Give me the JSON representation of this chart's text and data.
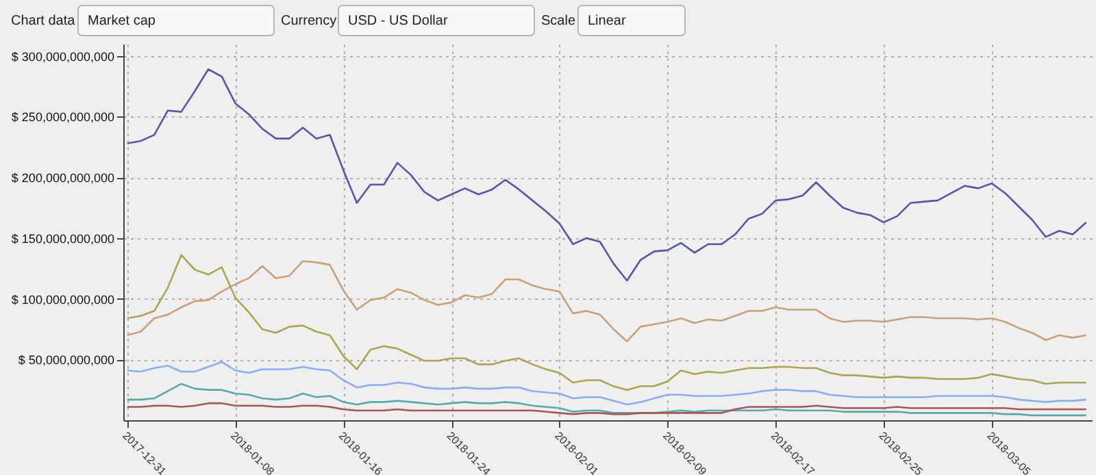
{
  "chart_data": {
    "type": "line",
    "annotations": [
      "Chart data",
      "Market cap",
      "Currency",
      "USD - US Dollar",
      "Scale",
      "Linear"
    ],
    "x": [
      "2017-12-31",
      "2018-01-01",
      "2018-01-02",
      "2018-01-03",
      "2018-01-04",
      "2018-01-05",
      "2018-01-06",
      "2018-01-07",
      "2018-01-08",
      "2018-01-09",
      "2018-01-10",
      "2018-01-11",
      "2018-01-12",
      "2018-01-13",
      "2018-01-14",
      "2018-01-15",
      "2018-01-16",
      "2018-01-17",
      "2018-01-18",
      "2018-01-19",
      "2018-01-20",
      "2018-01-21",
      "2018-01-22",
      "2018-01-23",
      "2018-01-24",
      "2018-01-25",
      "2018-01-26",
      "2018-01-27",
      "2018-01-28",
      "2018-01-29",
      "2018-01-30",
      "2018-01-31",
      "2018-02-01",
      "2018-02-02",
      "2018-02-03",
      "2018-02-04",
      "2018-02-05",
      "2018-02-06",
      "2018-02-07",
      "2018-02-08",
      "2018-02-09",
      "2018-02-10",
      "2018-02-11",
      "2018-02-12",
      "2018-02-13",
      "2018-02-14",
      "2018-02-15",
      "2018-02-16",
      "2018-02-17",
      "2018-02-18",
      "2018-02-19",
      "2018-02-20",
      "2018-02-21",
      "2018-02-22",
      "2018-02-23",
      "2018-02-24",
      "2018-02-25",
      "2018-02-26",
      "2018-02-27",
      "2018-02-28",
      "2018-03-01",
      "2018-03-02",
      "2018-03-03",
      "2018-03-04",
      "2018-03-05",
      "2018-03-06",
      "2018-03-07",
      "2018-03-08",
      "2018-03-09",
      "2018-03-10",
      "2018-03-11",
      "2018-03-12"
    ],
    "xlim": [
      "2017-12-30T17:00",
      "2018-03-12T10:00"
    ],
    "xticks": [
      "2017-12-31",
      "2018-01-08",
      "2018-01-16",
      "2018-01-24",
      "2018-02-01",
      "2018-02-09",
      "2018-02-17",
      "2018-02-25",
      "2018-03-05"
    ],
    "ylim": [
      0,
      310000000000.0
    ],
    "yticks": [
      {
        "value": 50000000000.0,
        "label": "$ 50,000,000,000"
      },
      {
        "value": 100000000000.0,
        "label": "$ 100,000,000,000"
      },
      {
        "value": 150000000000.0,
        "label": "$ 150,000,000,000"
      },
      {
        "value": 200000000000.0,
        "label": "$ 200,000,000,000"
      },
      {
        "value": 250000000000.0,
        "label": "$ 250,000,000,000"
      },
      {
        "value": 300000000000.0,
        "label": "$ 300,000,000,000"
      }
    ],
    "grid": true,
    "legend": false,
    "marker": "none",
    "line_style": "solid",
    "series": [
      {
        "color": "#5555aa",
        "values": [
          228000000000.0,
          230000000000.0,
          235000000000.0,
          255000000000.0,
          254000000000.0,
          271000000000.0,
          289000000000.0,
          283000000000.0,
          261000000000.0,
          252000000000.0,
          240000000000.0,
          232000000000.0,
          232000000000.0,
          241000000000.0,
          232000000000.0,
          235000000000.0,
          206000000000.0,
          179000000000.0,
          194000000000.0,
          194000000000.0,
          212000000000.0,
          202000000000.0,
          188000000000.0,
          181000000000.0,
          186000000000.0,
          191000000000.0,
          186000000000.0,
          190000000000.0,
          198000000000.0,
          190000000000.0,
          181000000000.0,
          172000000000.0,
          162000000000.0,
          145000000000.0,
          150000000000.0,
          147000000000.0,
          129000000000.0,
          115000000000.0,
          132000000000.0,
          139000000000.0,
          140000000000.0,
          146000000000.0,
          138000000000.0,
          145000000000.0,
          145000000000.0,
          153000000000.0,
          166000000000.0,
          170000000000.0,
          181000000000.0,
          182000000000.0,
          185000000000.0,
          196000000000.0,
          185000000000.0,
          175000000000.0,
          171000000000.0,
          169000000000.0,
          163000000000.0,
          168000000000.0,
          179000000000.0,
          180000000000.0,
          181000000000.0,
          187000000000.0,
          193000000000.0,
          191000000000.0,
          195000000000.0,
          187000000000.0,
          176000000000.0,
          165000000000.0,
          151000000000.0,
          156000000000.0,
          153000000000.0,
          163000000000.0
        ]
      },
      {
        "color": "#c8a07a",
        "values": [
          70000000000.0,
          73000000000.0,
          84000000000.0,
          87000000000.0,
          93000000000.0,
          98000000000.0,
          99000000000.0,
          106000000000.0,
          112000000000.0,
          117000000000.0,
          127000000000.0,
          117000000000.0,
          119000000000.0,
          131000000000.0,
          130000000000.0,
          128000000000.0,
          107000000000.0,
          91000000000.0,
          99000000000.0,
          101000000000.0,
          108000000000.0,
          105000000000.0,
          99000000000.0,
          95000000000.0,
          97000000000.0,
          103000000000.0,
          101000000000.0,
          104000000000.0,
          116000000000.0,
          116000000000.0,
          111000000000.0,
          108000000000.0,
          106000000000.0,
          88000000000.0,
          90000000000.0,
          87000000000.0,
          75000000000.0,
          65000000000.0,
          77000000000.0,
          79000000000.0,
          81000000000.0,
          84000000000.0,
          80000000000.0,
          83000000000.0,
          82000000000.0,
          86000000000.0,
          90000000000.0,
          90000000000.0,
          93000000000.0,
          91000000000.0,
          91000000000.0,
          91000000000.0,
          84000000000.0,
          81000000000.0,
          82000000000.0,
          82000000000.0,
          81000000000.0,
          83000000000.0,
          85000000000.0,
          85000000000.0,
          84000000000.0,
          84000000000.0,
          84000000000.0,
          83000000000.0,
          84000000000.0,
          81000000000.0,
          76000000000.0,
          72000000000.0,
          66000000000.0,
          70000000000.0,
          68000000000.0,
          70000000000.0
        ]
      },
      {
        "color": "#a8a84a",
        "values": [
          84000000000.0,
          86000000000.0,
          90000000000.0,
          109000000000.0,
          136000000000.0,
          124000000000.0,
          120000000000.0,
          126000000000.0,
          101000000000.0,
          89000000000.0,
          75000000000.0,
          72000000000.0,
          77000000000.0,
          78000000000.0,
          73000000000.0,
          70000000000.0,
          53000000000.0,
          42000000000.0,
          58000000000.0,
          61000000000.0,
          59000000000.0,
          54000000000.0,
          49000000000.0,
          49000000000.0,
          51000000000.0,
          51000000000.0,
          46000000000.0,
          46000000000.0,
          49000000000.0,
          51000000000.0,
          46000000000.0,
          42000000000.0,
          39000000000.0,
          31000000000.0,
          33000000000.0,
          33000000000.0,
          28000000000.0,
          25000000000.0,
          28000000000.0,
          28000000000.0,
          32000000000.0,
          41000000000.0,
          38000000000.0,
          40000000000.0,
          39000000000.0,
          41000000000.0,
          43000000000.0,
          43000000000.0,
          44000000000.0,
          44000000000.0,
          43000000000.0,
          43000000000.0,
          39000000000.0,
          37000000000.0,
          37000000000.0,
          36000000000.0,
          35000000000.0,
          36000000000.0,
          35000000000.0,
          35000000000.0,
          34000000000.0,
          34000000000.0,
          34000000000.0,
          35000000000.0,
          38000000000.0,
          36000000000.0,
          34000000000.0,
          33000000000.0,
          30000000000.0,
          31000000000.0,
          31000000000.0,
          31000000000.0
        ]
      },
      {
        "color": "#88aaff",
        "values": [
          41000000000.0,
          40000000000.0,
          43000000000.0,
          45000000000.0,
          40000000000.0,
          40000000000.0,
          44000000000.0,
          48000000000.0,
          41000000000.0,
          39000000000.0,
          42000000000.0,
          42000000000.0,
          42000000000.0,
          44000000000.0,
          42000000000.0,
          41000000000.0,
          33000000000.0,
          27000000000.0,
          29000000000.0,
          29000000000.0,
          31000000000.0,
          30000000000.0,
          27000000000.0,
          26000000000.0,
          26000000000.0,
          27000000000.0,
          26000000000.0,
          26000000000.0,
          27000000000.0,
          27000000000.0,
          24000000000.0,
          23000000000.0,
          22000000000.0,
          18000000000.0,
          19000000000.0,
          19000000000.0,
          16000000000.0,
          13000000000.0,
          15000000000.0,
          18000000000.0,
          21000000000.0,
          21000000000.0,
          20000000000.0,
          20000000000.0,
          20000000000.0,
          21000000000.0,
          22000000000.0,
          24000000000.0,
          25000000000.0,
          25000000000.0,
          24000000000.0,
          24000000000.0,
          21000000000.0,
          20000000000.0,
          19000000000.0,
          19000000000.0,
          19000000000.0,
          19000000000.0,
          19000000000.0,
          19000000000.0,
          20000000000.0,
          20000000000.0,
          20000000000.0,
          20000000000.0,
          20000000000.0,
          19000000000.0,
          17000000000.0,
          16000000000.0,
          15000000000.0,
          16000000000.0,
          16000000000.0,
          17000000000.0
        ]
      },
      {
        "color": "#55aaaa",
        "values": [
          17000000000.0,
          17000000000.0,
          18000000000.0,
          24000000000.0,
          30000000000.0,
          26000000000.0,
          25000000000.0,
          25000000000.0,
          22000000000.0,
          21000000000.0,
          18000000000.0,
          17000000000.0,
          18000000000.0,
          22000000000.0,
          19000000000.0,
          20000000000.0,
          15000000000.0,
          13000000000.0,
          15000000000.0,
          15000000000.0,
          16000000000.0,
          15000000000.0,
          14000000000.0,
          13000000000.0,
          14000000000.0,
          15000000000.0,
          14000000000.0,
          14000000000.0,
          15000000000.0,
          14000000000.0,
          12000000000.0,
          11000000000.0,
          10000000000.0,
          7000000000.0,
          8000000000.0,
          8000000000.0,
          6000000000.0,
          6000000000.0,
          6000000000.0,
          6000000000.0,
          7000000000.0,
          8000000000.0,
          7000000000.0,
          8000000000.0,
          8000000000.0,
          8000000000.0,
          8000000000.0,
          8000000000.0,
          9000000000.0,
          8000000000.0,
          8000000000.0,
          8000000000.0,
          8000000000.0,
          7000000000.0,
          7000000000.0,
          7000000000.0,
          7000000000.0,
          7000000000.0,
          6000000000.0,
          6000000000.0,
          6000000000.0,
          6000000000.0,
          6000000000.0,
          6000000000.0,
          6000000000.0,
          5000000000.0,
          5000000000.0,
          4000000000.0,
          4000000000.0,
          4000000000.0,
          4000000000.0,
          4000000000.0
        ]
      },
      {
        "color": "#aa5555",
        "values": [
          11000000000.0,
          11000000000.0,
          12000000000.0,
          12000000000.0,
          11000000000.0,
          12000000000.0,
          14000000000.0,
          14000000000.0,
          12000000000.0,
          12000000000.0,
          12000000000.0,
          11000000000.0,
          11000000000.0,
          12000000000.0,
          12000000000.0,
          11000000000.0,
          9000000000.0,
          8000000000.0,
          8000000000.0,
          8000000000.0,
          9000000000.0,
          8000000000.0,
          8000000000.0,
          8000000000.0,
          8000000000.0,
          8000000000.0,
          8000000000.0,
          8000000000.0,
          8000000000.0,
          8000000000.0,
          8000000000.0,
          7000000000.0,
          6000000000.0,
          5000000000.0,
          6000000000.0,
          6000000000.0,
          5000000000.0,
          5000000000.0,
          6000000000.0,
          6000000000.0,
          6000000000.0,
          6000000000.0,
          6000000000.0,
          6000000000.0,
          6000000000.0,
          9000000000.0,
          11000000000.0,
          11000000000.0,
          11000000000.0,
          11000000000.0,
          11000000000.0,
          12000000000.0,
          11000000000.0,
          10000000000.0,
          10000000000.0,
          10000000000.0,
          10000000000.0,
          11000000000.0,
          10000000000.0,
          10000000000.0,
          10000000000.0,
          10000000000.0,
          10000000000.0,
          10000000000.0,
          10000000000.0,
          10000000000.0,
          9000000000.0,
          9000000000.0,
          9000000000.0,
          9000000000.0,
          9000000000.0,
          9000000000.0
        ]
      }
    ]
  }
}
